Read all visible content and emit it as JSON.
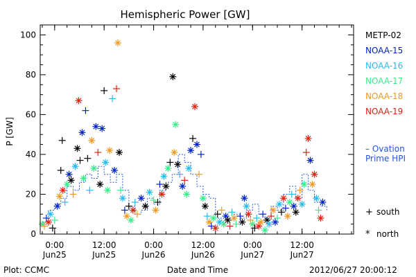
{
  "chart_data": {
    "type": "scatter",
    "title": "Hemispheric Power [GW]",
    "xlabel": "Date and Time",
    "ylabel": "P [GW]",
    "xlim": [
      "2012-06-24T20:30",
      "2012-06-28T00:30"
    ],
    "ylim": [
      0,
      105
    ],
    "y_ticks": [
      0,
      20,
      40,
      60,
      80,
      100
    ],
    "x_ticks": [
      {
        "time": "2012-06-25T00:00",
        "top": "0:00",
        "bottom": "Jun25"
      },
      {
        "time": "2012-06-25T12:00",
        "top": "12:00",
        "bottom": "Jun25"
      },
      {
        "time": "2012-06-26T00:00",
        "top": "0:00",
        "bottom": "Jun26"
      },
      {
        "time": "2012-06-26T12:00",
        "top": "12:00",
        "bottom": "Jun26"
      },
      {
        "time": "2012-06-27T00:00",
        "top": "0:00",
        "bottom": "Jun27"
      },
      {
        "time": "2012-06-27T12:00",
        "top": "12:00",
        "bottom": "Jun27"
      }
    ],
    "legend_position": "right",
    "series": [
      {
        "name": "METP-02",
        "color": "#000000"
      },
      {
        "name": "NOAA-15",
        "color": "#0022cc"
      },
      {
        "name": "NOAA-16",
        "color": "#22bbee"
      },
      {
        "name": "NOAA-17",
        "color": "#33ee88"
      },
      {
        "name": "NOAA-18",
        "color": "#ee9922"
      },
      {
        "name": "NOAA-19",
        "color": "#dd2211"
      }
    ],
    "ovation_label_line1": "Ovation",
    "ovation_label_line2": "Prime HPI",
    "ovation_color": "#2255dd",
    "ovation_points": [
      {
        "x": "2012-06-24T21:00",
        "y": 6
      },
      {
        "x": "2012-06-24T22:30",
        "y": 12
      },
      {
        "x": "2012-06-25T00:00",
        "y": 15
      },
      {
        "x": "2012-06-25T01:30",
        "y": 18
      },
      {
        "x": "2012-06-25T03:00",
        "y": 24
      },
      {
        "x": "2012-06-25T04:30",
        "y": 22
      },
      {
        "x": "2012-06-25T06:00",
        "y": 26
      },
      {
        "x": "2012-06-25T07:30",
        "y": 30
      },
      {
        "x": "2012-06-25T09:00",
        "y": 28
      },
      {
        "x": "2012-06-25T10:30",
        "y": 34
      },
      {
        "x": "2012-06-25T12:00",
        "y": 30
      },
      {
        "x": "2012-06-25T13:30",
        "y": 26
      },
      {
        "x": "2012-06-25T15:00",
        "y": 30
      },
      {
        "x": "2012-06-25T16:30",
        "y": 22
      },
      {
        "x": "2012-06-25T18:00",
        "y": 14
      },
      {
        "x": "2012-06-25T19:30",
        "y": 10
      },
      {
        "x": "2012-06-25T21:00",
        "y": 12
      },
      {
        "x": "2012-06-25T22:30",
        "y": 18
      },
      {
        "x": "2012-06-26T00:00",
        "y": 15
      },
      {
        "x": "2012-06-26T01:30",
        "y": 22
      },
      {
        "x": "2012-06-26T03:00",
        "y": 26
      },
      {
        "x": "2012-06-26T04:30",
        "y": 30
      },
      {
        "x": "2012-06-26T06:00",
        "y": 40
      },
      {
        "x": "2012-06-26T07:30",
        "y": 36
      },
      {
        "x": "2012-06-26T09:00",
        "y": 30
      },
      {
        "x": "2012-06-26T10:30",
        "y": 24
      },
      {
        "x": "2012-06-26T12:00",
        "y": 20
      },
      {
        "x": "2012-06-26T13:30",
        "y": 18
      },
      {
        "x": "2012-06-26T15:00",
        "y": 8
      },
      {
        "x": "2012-06-26T16:30",
        "y": 6
      },
      {
        "x": "2012-06-26T18:00",
        "y": 8
      },
      {
        "x": "2012-06-26T19:30",
        "y": 10
      },
      {
        "x": "2012-06-26T21:00",
        "y": 8
      },
      {
        "x": "2012-06-26T22:30",
        "y": 12
      },
      {
        "x": "2012-06-27T00:00",
        "y": 15
      },
      {
        "x": "2012-06-27T01:30",
        "y": 10
      },
      {
        "x": "2012-06-27T03:00",
        "y": 8
      },
      {
        "x": "2012-06-27T04:30",
        "y": 14
      },
      {
        "x": "2012-06-27T06:00",
        "y": 12
      },
      {
        "x": "2012-06-27T07:30",
        "y": 20
      },
      {
        "x": "2012-06-27T09:00",
        "y": 24
      },
      {
        "x": "2012-06-27T10:30",
        "y": 18
      },
      {
        "x": "2012-06-27T12:00",
        "y": 30
      },
      {
        "x": "2012-06-27T13:30",
        "y": 22
      },
      {
        "x": "2012-06-27T15:00",
        "y": 16
      },
      {
        "x": "2012-06-27T16:30",
        "y": 14
      },
      {
        "x": "2012-06-27T18:00",
        "y": 12
      }
    ],
    "marker_legend": [
      {
        "glyph": "+",
        "label": "south"
      },
      {
        "glyph": "*",
        "label": "north"
      }
    ],
    "points": [
      {
        "x": "2012-06-24T21:00",
        "y": 5,
        "s": "NOAA-17",
        "m": "*"
      },
      {
        "x": "2012-06-24T21:30",
        "y": 4,
        "s": "NOAA-18",
        "m": "+"
      },
      {
        "x": "2012-06-24T22:00",
        "y": 8,
        "s": "NOAA-15",
        "m": "+"
      },
      {
        "x": "2012-06-24T22:30",
        "y": 6,
        "s": "NOAA-19",
        "m": "*"
      },
      {
        "x": "2012-06-24T23:00",
        "y": 10,
        "s": "NOAA-16",
        "m": "*"
      },
      {
        "x": "2012-06-24T23:30",
        "y": 3,
        "s": "METP-02",
        "m": "+"
      },
      {
        "x": "2012-06-25T00:00",
        "y": 7,
        "s": "NOAA-17",
        "m": "+"
      },
      {
        "x": "2012-06-25T00:40",
        "y": 14,
        "s": "NOAA-15",
        "m": "*"
      },
      {
        "x": "2012-06-25T01:10",
        "y": 19,
        "s": "NOAA-18",
        "m": "*"
      },
      {
        "x": "2012-06-25T01:30",
        "y": 32,
        "s": "METP-02",
        "m": "+"
      },
      {
        "x": "2012-06-25T01:50",
        "y": 47,
        "s": "METP-02",
        "m": "+"
      },
      {
        "x": "2012-06-25T02:00",
        "y": 22,
        "s": "NOAA-19",
        "m": "*"
      },
      {
        "x": "2012-06-25T02:30",
        "y": 16,
        "s": "NOAA-16",
        "m": "+"
      },
      {
        "x": "2012-06-25T03:00",
        "y": 25,
        "s": "NOAA-17",
        "m": "*"
      },
      {
        "x": "2012-06-25T03:30",
        "y": 30,
        "s": "NOAA-15",
        "m": "*"
      },
      {
        "x": "2012-06-25T04:00",
        "y": 27,
        "s": "METP-02",
        "m": "*"
      },
      {
        "x": "2012-06-25T04:30",
        "y": 20,
        "s": "NOAA-18",
        "m": "+"
      },
      {
        "x": "2012-06-25T05:00",
        "y": 34,
        "s": "NOAA-16",
        "m": "*"
      },
      {
        "x": "2012-06-25T05:30",
        "y": 43,
        "s": "METP-02",
        "m": "*"
      },
      {
        "x": "2012-06-25T05:50",
        "y": 67,
        "s": "NOAA-19",
        "m": "*"
      },
      {
        "x": "2012-06-25T06:10",
        "y": 37,
        "s": "METP-02",
        "m": "+"
      },
      {
        "x": "2012-06-25T06:40",
        "y": 51,
        "s": "NOAA-15",
        "m": "*"
      },
      {
        "x": "2012-06-25T07:00",
        "y": 28,
        "s": "NOAA-17",
        "m": "*"
      },
      {
        "x": "2012-06-25T07:30",
        "y": 62,
        "s": "NOAA-15",
        "m": "+"
      },
      {
        "x": "2012-06-25T08:00",
        "y": 38,
        "s": "METP-02",
        "m": "+"
      },
      {
        "x": "2012-06-25T08:30",
        "y": 22,
        "s": "NOAA-16",
        "m": "+"
      },
      {
        "x": "2012-06-25T09:00",
        "y": 47,
        "s": "NOAA-18",
        "m": "*"
      },
      {
        "x": "2012-06-25T09:30",
        "y": 33,
        "s": "NOAA-17",
        "m": "*"
      },
      {
        "x": "2012-06-25T10:00",
        "y": 54,
        "s": "NOAA-15",
        "m": "*"
      },
      {
        "x": "2012-06-25T10:30",
        "y": 41,
        "s": "NOAA-19",
        "m": "+"
      },
      {
        "x": "2012-06-25T11:00",
        "y": 25,
        "s": "METP-02",
        "m": "*"
      },
      {
        "x": "2012-06-25T11:30",
        "y": 53,
        "s": "NOAA-15",
        "m": "*"
      },
      {
        "x": "2012-06-25T12:00",
        "y": 72,
        "s": "METP-02",
        "m": "+"
      },
      {
        "x": "2012-06-25T12:20",
        "y": 36,
        "s": "NOAA-16",
        "m": "*"
      },
      {
        "x": "2012-06-25T12:50",
        "y": 22,
        "s": "NOAA-17",
        "m": "*"
      },
      {
        "x": "2012-06-25T13:20",
        "y": 42,
        "s": "NOAA-18",
        "m": "*"
      },
      {
        "x": "2012-06-25T14:00",
        "y": 68,
        "s": "NOAA-16",
        "m": "+"
      },
      {
        "x": "2012-06-25T14:30",
        "y": 32,
        "s": "NOAA-15",
        "m": "*"
      },
      {
        "x": "2012-06-25T15:00",
        "y": 73,
        "s": "NOAA-19",
        "m": "+"
      },
      {
        "x": "2012-06-25T15:20",
        "y": 96,
        "s": "NOAA-18",
        "m": "*"
      },
      {
        "x": "2012-06-25T15:40",
        "y": 41,
        "s": "METP-02",
        "m": "*"
      },
      {
        "x": "2012-06-25T16:00",
        "y": 22,
        "s": "NOAA-17",
        "m": "+"
      },
      {
        "x": "2012-06-25T16:30",
        "y": 18,
        "s": "NOAA-16",
        "m": "*"
      },
      {
        "x": "2012-06-25T17:00",
        "y": 12,
        "s": "NOAA-15",
        "m": "+"
      },
      {
        "x": "2012-06-25T17:30",
        "y": 9,
        "s": "NOAA-18",
        "m": "*"
      },
      {
        "x": "2012-06-25T18:00",
        "y": 14,
        "s": "METP-02",
        "m": "+"
      },
      {
        "x": "2012-06-25T18:30",
        "y": 7,
        "s": "NOAA-17",
        "m": "*"
      },
      {
        "x": "2012-06-25T19:00",
        "y": 12,
        "s": "NOAA-19",
        "m": "*"
      },
      {
        "x": "2012-06-25T19:30",
        "y": 16,
        "s": "NOAA-16",
        "m": "+"
      },
      {
        "x": "2012-06-25T20:00",
        "y": 10,
        "s": "NOAA-18",
        "m": "+"
      },
      {
        "x": "2012-06-25T21:00",
        "y": 18,
        "s": "NOAA-15",
        "m": "*"
      },
      {
        "x": "2012-06-25T22:00",
        "y": 14,
        "s": "METP-02",
        "m": "*"
      },
      {
        "x": "2012-06-25T23:00",
        "y": 21,
        "s": "NOAA-16",
        "m": "*"
      },
      {
        "x": "2012-06-26T00:00",
        "y": 17,
        "s": "NOAA-17",
        "m": "+"
      },
      {
        "x": "2012-06-26T00:30",
        "y": 12,
        "s": "NOAA-18",
        "m": "*"
      },
      {
        "x": "2012-06-26T01:00",
        "y": 16,
        "s": "METP-02",
        "m": "+"
      },
      {
        "x": "2012-06-26T01:30",
        "y": 25,
        "s": "NOAA-15",
        "m": "+"
      },
      {
        "x": "2012-06-26T02:00",
        "y": 20,
        "s": "NOAA-19",
        "m": "*"
      },
      {
        "x": "2012-06-26T02:30",
        "y": 29,
        "s": "NOAA-16",
        "m": "*"
      },
      {
        "x": "2012-06-26T03:00",
        "y": 24,
        "s": "METP-02",
        "m": "*"
      },
      {
        "x": "2012-06-26T03:30",
        "y": 33,
        "s": "NOAA-17",
        "m": "*"
      },
      {
        "x": "2012-06-26T04:00",
        "y": 36,
        "s": "METP-02",
        "m": "+"
      },
      {
        "x": "2012-06-26T04:40",
        "y": 79,
        "s": "METP-02",
        "m": "*"
      },
      {
        "x": "2012-06-26T05:00",
        "y": 41,
        "s": "NOAA-18",
        "m": "*"
      },
      {
        "x": "2012-06-26T05:20",
        "y": 55,
        "s": "NOAA-17",
        "m": "*"
      },
      {
        "x": "2012-06-26T05:50",
        "y": 35,
        "s": "METP-02",
        "m": "*"
      },
      {
        "x": "2012-06-26T06:20",
        "y": 30,
        "s": "NOAA-16",
        "m": "+"
      },
      {
        "x": "2012-06-26T07:00",
        "y": 24,
        "s": "NOAA-15",
        "m": "*"
      },
      {
        "x": "2012-06-26T07:30",
        "y": 27,
        "s": "NOAA-19",
        "m": "+"
      },
      {
        "x": "2012-06-26T08:00",
        "y": 20,
        "s": "NOAA-17",
        "m": "*"
      },
      {
        "x": "2012-06-26T08:30",
        "y": 33,
        "s": "NOAA-16",
        "m": "*"
      },
      {
        "x": "2012-06-26T09:00",
        "y": 42,
        "s": "NOAA-15",
        "m": "*"
      },
      {
        "x": "2012-06-26T09:30",
        "y": 48,
        "s": "METP-02",
        "m": "+"
      },
      {
        "x": "2012-06-26T10:00",
        "y": 64,
        "s": "NOAA-19",
        "m": "*"
      },
      {
        "x": "2012-06-26T10:30",
        "y": 45,
        "s": "NOAA-15",
        "m": "*"
      },
      {
        "x": "2012-06-26T11:00",
        "y": 30,
        "s": "NOAA-18",
        "m": "+"
      },
      {
        "x": "2012-06-26T11:30",
        "y": 40,
        "s": "NOAA-15",
        "m": "+"
      },
      {
        "x": "2012-06-26T12:00",
        "y": 18,
        "s": "NOAA-17",
        "m": "*"
      },
      {
        "x": "2012-06-26T12:30",
        "y": 14,
        "s": "METP-02",
        "m": "*"
      },
      {
        "x": "2012-06-26T13:00",
        "y": 9,
        "s": "NOAA-16",
        "m": "+"
      },
      {
        "x": "2012-06-26T13:30",
        "y": 6,
        "s": "NOAA-18",
        "m": "*"
      },
      {
        "x": "2012-06-26T14:00",
        "y": 4,
        "s": "NOAA-15",
        "m": "+"
      },
      {
        "x": "2012-06-26T14:30",
        "y": 8,
        "s": "NOAA-17",
        "m": "*"
      },
      {
        "x": "2012-06-26T15:00",
        "y": 3,
        "s": "NOAA-19",
        "m": "*"
      },
      {
        "x": "2012-06-26T15:30",
        "y": 10,
        "s": "METP-02",
        "m": "+"
      },
      {
        "x": "2012-06-26T16:00",
        "y": 6,
        "s": "NOAA-16",
        "m": "*"
      },
      {
        "x": "2012-06-26T16:30",
        "y": 12,
        "s": "NOAA-18",
        "m": "+"
      },
      {
        "x": "2012-06-26T17:00",
        "y": 5,
        "s": "NOAA-17",
        "m": "*"
      },
      {
        "x": "2012-06-26T17:30",
        "y": 9,
        "s": "NOAA-15",
        "m": "*"
      },
      {
        "x": "2012-06-26T18:00",
        "y": 7,
        "s": "METP-02",
        "m": "*"
      },
      {
        "x": "2012-06-26T18:30",
        "y": 4,
        "s": "NOAA-19",
        "m": "+"
      },
      {
        "x": "2012-06-26T19:00",
        "y": 11,
        "s": "NOAA-16",
        "m": "+"
      },
      {
        "x": "2012-06-26T19:30",
        "y": 8,
        "s": "NOAA-18",
        "m": "*"
      },
      {
        "x": "2012-06-26T20:00",
        "y": 5,
        "s": "NOAA-17",
        "m": "+"
      },
      {
        "x": "2012-06-26T21:00",
        "y": 9,
        "s": "NOAA-15",
        "m": "+"
      },
      {
        "x": "2012-06-26T21:30",
        "y": 6,
        "s": "METP-02",
        "m": "*"
      },
      {
        "x": "2012-06-26T22:00",
        "y": 18,
        "s": "NOAA-15",
        "m": "*"
      },
      {
        "x": "2012-06-26T22:30",
        "y": 14,
        "s": "NOAA-16",
        "m": "*"
      },
      {
        "x": "2012-06-26T23:00",
        "y": 10,
        "s": "NOAA-19",
        "m": "*"
      },
      {
        "x": "2012-06-26T23:30",
        "y": 7,
        "s": "NOAA-18",
        "m": "+"
      },
      {
        "x": "2012-06-27T00:00",
        "y": 5,
        "s": "NOAA-17",
        "m": "*"
      },
      {
        "x": "2012-06-27T00:30",
        "y": 3,
        "s": "METP-02",
        "m": "+"
      },
      {
        "x": "2012-06-27T01:00",
        "y": 8,
        "s": "NOAA-16",
        "m": "+"
      },
      {
        "x": "2012-06-27T01:30",
        "y": 4,
        "s": "NOAA-19",
        "m": "*"
      },
      {
        "x": "2012-06-27T02:00",
        "y": 6,
        "s": "NOAA-18",
        "m": "*"
      },
      {
        "x": "2012-06-27T02:30",
        "y": 10,
        "s": "NOAA-15",
        "m": "+"
      },
      {
        "x": "2012-06-27T03:00",
        "y": 2,
        "s": "NOAA-17",
        "m": "*"
      },
      {
        "x": "2012-06-27T03:30",
        "y": 7,
        "s": "METP-02",
        "m": "*"
      },
      {
        "x": "2012-06-27T04:00",
        "y": 5,
        "s": "NOAA-16",
        "m": "*"
      },
      {
        "x": "2012-06-27T04:30",
        "y": 9,
        "s": "NOAA-19",
        "m": "+"
      },
      {
        "x": "2012-06-27T05:00",
        "y": 12,
        "s": "NOAA-18",
        "m": "*"
      },
      {
        "x": "2012-06-27T05:30",
        "y": 6,
        "s": "NOAA-15",
        "m": "*"
      },
      {
        "x": "2012-06-27T06:00",
        "y": 8,
        "s": "NOAA-17",
        "m": "+"
      },
      {
        "x": "2012-06-27T06:30",
        "y": 15,
        "s": "NOAA-16",
        "m": "*"
      },
      {
        "x": "2012-06-27T07:00",
        "y": 11,
        "s": "METP-02",
        "m": "+"
      },
      {
        "x": "2012-06-27T07:30",
        "y": 18,
        "s": "NOAA-19",
        "m": "*"
      },
      {
        "x": "2012-06-27T08:00",
        "y": 13,
        "s": "NOAA-15",
        "m": "+"
      },
      {
        "x": "2012-06-27T08:30",
        "y": 9,
        "s": "NOAA-18",
        "m": "*"
      },
      {
        "x": "2012-06-27T09:00",
        "y": 16,
        "s": "NOAA-17",
        "m": "*"
      },
      {
        "x": "2012-06-27T09:30",
        "y": 20,
        "s": "NOAA-16",
        "m": "+"
      },
      {
        "x": "2012-06-27T10:00",
        "y": 14,
        "s": "NOAA-15",
        "m": "*"
      },
      {
        "x": "2012-06-27T10:30",
        "y": 11,
        "s": "METP-02",
        "m": "*"
      },
      {
        "x": "2012-06-27T11:00",
        "y": 18,
        "s": "NOAA-19",
        "m": "*"
      },
      {
        "x": "2012-06-27T11:30",
        "y": 22,
        "s": "NOAA-18",
        "m": "+"
      },
      {
        "x": "2012-06-27T12:00",
        "y": 15,
        "s": "NOAA-16",
        "m": "*"
      },
      {
        "x": "2012-06-27T12:30",
        "y": 25,
        "s": "NOAA-17",
        "m": "*"
      },
      {
        "x": "2012-06-27T13:00",
        "y": 41,
        "s": "NOAA-19",
        "m": "+"
      },
      {
        "x": "2012-06-27T13:30",
        "y": 48,
        "s": "NOAA-19",
        "m": "*"
      },
      {
        "x": "2012-06-27T14:00",
        "y": 37,
        "s": "NOAA-15",
        "m": "*"
      },
      {
        "x": "2012-06-27T14:30",
        "y": 25,
        "s": "NOAA-18",
        "m": "*"
      },
      {
        "x": "2012-06-27T15:00",
        "y": 30,
        "s": "NOAA-19",
        "m": "*"
      },
      {
        "x": "2012-06-27T15:30",
        "y": 18,
        "s": "NOAA-16",
        "m": "*"
      },
      {
        "x": "2012-06-27T16:00",
        "y": 12,
        "s": "NOAA-17",
        "m": "+"
      },
      {
        "x": "2012-06-27T16:30",
        "y": 8,
        "s": "NOAA-19",
        "m": "*"
      },
      {
        "x": "2012-06-27T17:00",
        "y": 16,
        "s": "NOAA-15",
        "m": "*"
      }
    ]
  },
  "footer": {
    "credit": "Plot: CCMC",
    "timestamp": "2012/06/27 20:00:12"
  }
}
